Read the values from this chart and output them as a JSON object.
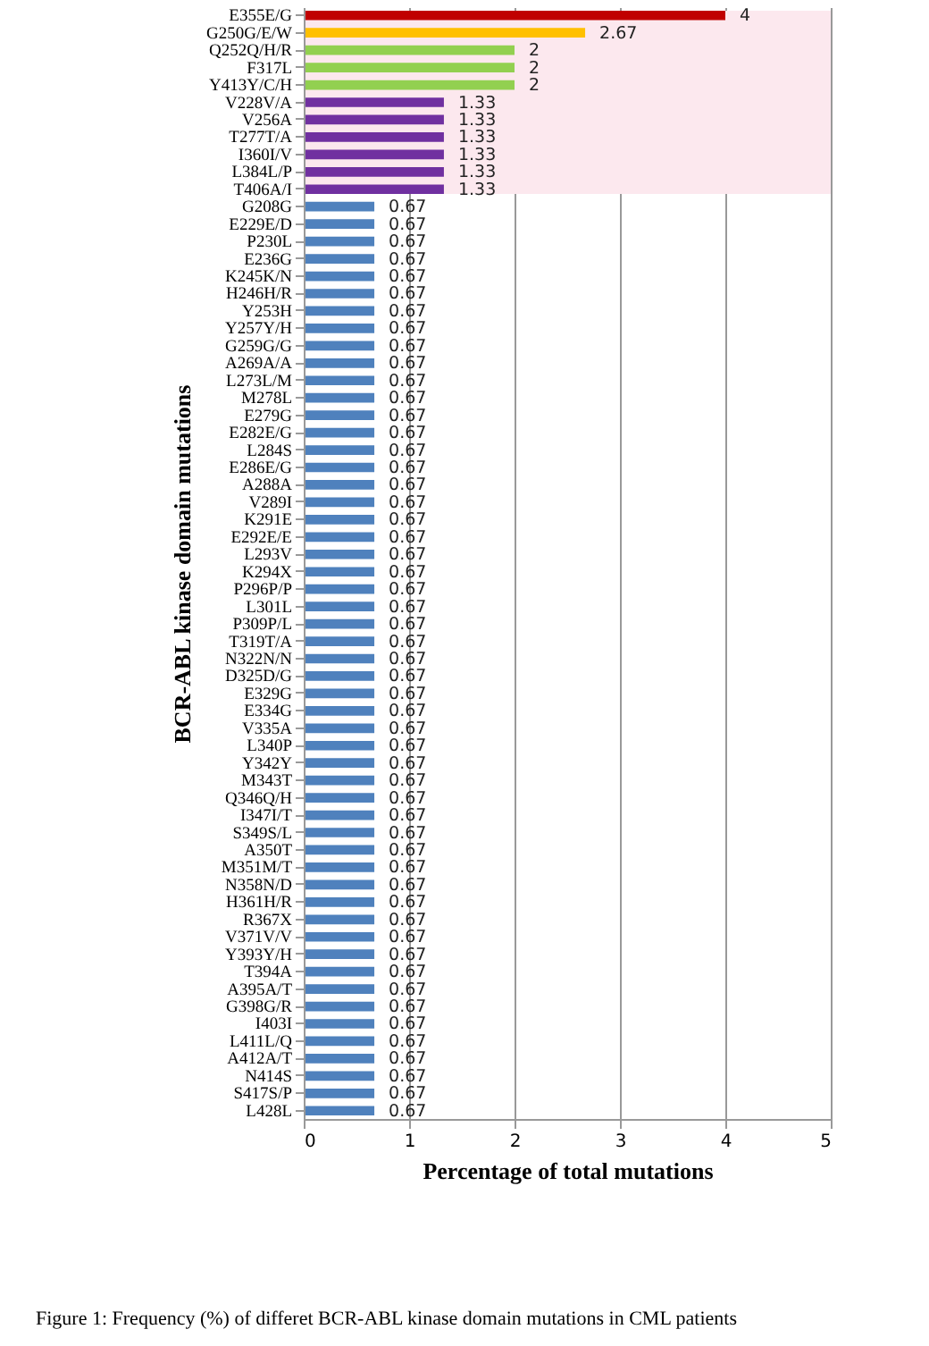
{
  "chart_data": {
    "type": "bar",
    "orientation": "horizontal",
    "title": "Figure 1: Frequency (%) of differet BCR-ABL kinase domain mutations in CML patients",
    "xlabel": "Percentage of total mutations",
    "ylabel": "BCR-ABL kinase domain mutations",
    "categories": [
      "E355E/G",
      "G250G/E/W",
      "Q252Q/H/R",
      "F317L",
      "Y413Y/C/H",
      "V228V/A",
      "V256A",
      "T277T/A",
      "I360I/V",
      "L384L/P",
      "T406A/I",
      "G208G",
      "E229E/D",
      "P230L",
      "E236G",
      "K245K/N",
      "H246H/R",
      "Y253H",
      "Y257Y/H",
      "G259G/G",
      "A269A/A",
      "L273L/M",
      "M278L",
      "E279G",
      "E282E/G",
      "L284S",
      "E286E/G",
      "A288A",
      "V289I",
      "K291E",
      "E292E/E",
      "L293V",
      "K294X",
      "P296P/P",
      "L301L",
      "P309P/L",
      "T319T/A",
      "N322N/N",
      "D325D/G",
      "E329G",
      "E334G",
      "V335A",
      "L340P",
      "Y342Y",
      "M343T",
      "Q346Q/H",
      "I347I/T",
      "S349S/L",
      "A350T",
      "M351M/T",
      "N358N/D",
      "H361H/R",
      "R367X",
      "V371V/V",
      "Y393Y/H",
      "T394A",
      "A395A/T",
      "G398G/R",
      "I403I",
      "L411L/Q",
      "A412A/T",
      "N414S",
      "S417S/P",
      "L428L"
    ],
    "values": [
      4,
      2.67,
      2,
      2,
      2,
      1.33,
      1.33,
      1.33,
      1.33,
      1.33,
      1.33,
      0.67,
      0.67,
      0.67,
      0.67,
      0.67,
      0.67,
      0.67,
      0.67,
      0.67,
      0.67,
      0.67,
      0.67,
      0.67,
      0.67,
      0.67,
      0.67,
      0.67,
      0.67,
      0.67,
      0.67,
      0.67,
      0.67,
      0.67,
      0.67,
      0.67,
      0.67,
      0.67,
      0.67,
      0.67,
      0.67,
      0.67,
      0.67,
      0.67,
      0.67,
      0.67,
      0.67,
      0.67,
      0.67,
      0.67,
      0.67,
      0.67,
      0.67,
      0.67,
      0.67,
      0.67,
      0.67,
      0.67,
      0.67,
      0.67,
      0.67,
      0.67,
      0.67,
      0.67
    ],
    "colors": [
      "#c00000",
      "#ffc000",
      "#92d050",
      "#92d050",
      "#92d050",
      "#7030a0",
      "#7030a0",
      "#7030a0",
      "#7030a0",
      "#7030a0",
      "#7030a0",
      "#4f81bd",
      "#4f81bd",
      "#4f81bd",
      "#4f81bd",
      "#4f81bd",
      "#4f81bd",
      "#4f81bd",
      "#4f81bd",
      "#4f81bd",
      "#4f81bd",
      "#4f81bd",
      "#4f81bd",
      "#4f81bd",
      "#4f81bd",
      "#4f81bd",
      "#4f81bd",
      "#4f81bd",
      "#4f81bd",
      "#4f81bd",
      "#4f81bd",
      "#4f81bd",
      "#4f81bd",
      "#4f81bd",
      "#4f81bd",
      "#4f81bd",
      "#4f81bd",
      "#4f81bd",
      "#4f81bd",
      "#4f81bd",
      "#4f81bd",
      "#4f81bd",
      "#4f81bd",
      "#4f81bd",
      "#4f81bd",
      "#4f81bd",
      "#4f81bd",
      "#4f81bd",
      "#4f81bd",
      "#4f81bd",
      "#4f81bd",
      "#4f81bd",
      "#4f81bd",
      "#4f81bd",
      "#4f81bd",
      "#4f81bd",
      "#4f81bd",
      "#4f81bd",
      "#4f81bd",
      "#4f81bd",
      "#4f81bd",
      "#4f81bd",
      "#4f81bd",
      "#4f81bd"
    ],
    "xlim": [
      0,
      5
    ],
    "xticks": [
      0,
      1,
      2,
      3,
      4,
      5
    ],
    "grid": "x",
    "data_labels": true,
    "bands": [
      {
        "axis": "y",
        "from": "E355E/G",
        "to": "T406A/I",
        "color": "#fce8ee"
      }
    ]
  }
}
